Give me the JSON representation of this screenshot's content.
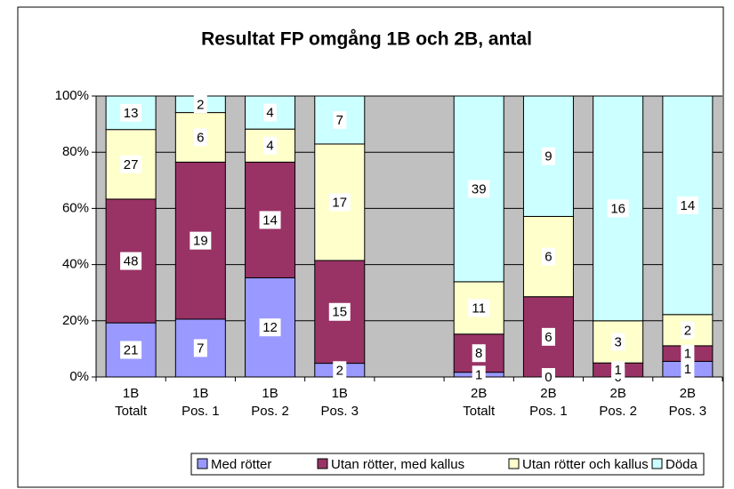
{
  "chart_data": {
    "type": "bar",
    "stacked": "percent",
    "title": "Resultat FP omgång 1B och 2B, antal",
    "categories": [
      [
        "1B",
        "Totalt"
      ],
      [
        "1B",
        "Pos. 1"
      ],
      [
        "1B",
        "Pos. 2"
      ],
      [
        "1B",
        "Pos. 3"
      ],
      null,
      [
        "2B",
        "Totalt"
      ],
      [
        "2B",
        "Pos. 1"
      ],
      [
        "2B",
        "Pos. 2"
      ],
      [
        "2B",
        "Pos. 3"
      ]
    ],
    "series": [
      {
        "name": "Med rötter",
        "color": "#9999ff",
        "values": [
          21,
          7,
          12,
          2,
          null,
          1,
          0,
          0,
          1
        ]
      },
      {
        "name": "Utan rötter, med kallus",
        "color": "#993366",
        "values": [
          48,
          19,
          14,
          15,
          null,
          8,
          6,
          1,
          1
        ]
      },
      {
        "name": "Utan rötter och kallus",
        "color": "#ffffcc",
        "values": [
          27,
          6,
          4,
          17,
          null,
          11,
          6,
          3,
          2
        ]
      },
      {
        "name": "Döda",
        "color": "#ccffff",
        "values": [
          13,
          2,
          4,
          7,
          null,
          39,
          9,
          16,
          14
        ]
      }
    ],
    "ylim": [
      0,
      100
    ],
    "yticks": [
      {
        "value": 0,
        "label": "0%"
      },
      {
        "value": 20,
        "label": "20%"
      },
      {
        "value": 40,
        "label": "40%"
      },
      {
        "value": 60,
        "label": "60%"
      },
      {
        "value": 80,
        "label": "80%"
      },
      {
        "value": 100,
        "label": "100%"
      }
    ],
    "grid": true,
    "legend": "bottom",
    "plot_background": "#c0c0c0"
  }
}
